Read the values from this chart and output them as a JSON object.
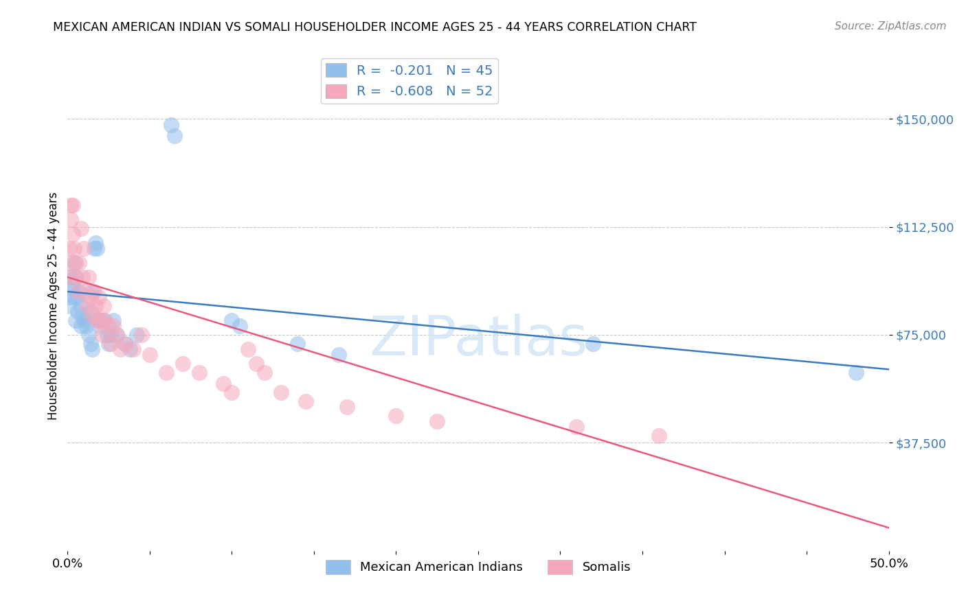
{
  "title": "MEXICAN AMERICAN INDIAN VS SOMALI HOUSEHOLDER INCOME AGES 25 - 44 YEARS CORRELATION CHART",
  "source": "Source: ZipAtlas.com",
  "ylabel": "Householder Income Ages 25 - 44 years",
  "xlim": [
    0.0,
    0.5
  ],
  "ylim": [
    0,
    170000
  ],
  "yticks": [
    37500,
    75000,
    112500,
    150000
  ],
  "ytick_labels": [
    "$37,500",
    "$75,000",
    "$112,500",
    "$150,000"
  ],
  "xtick_positions": [
    0.0,
    0.05,
    0.1,
    0.15,
    0.2,
    0.25,
    0.3,
    0.35,
    0.4,
    0.45,
    0.5
  ],
  "xtick_labels": [
    "0.0%",
    "",
    "",
    "",
    "",
    "",
    "",
    "",
    "",
    "",
    "50.0%"
  ],
  "blue_color": "#92c0ec",
  "pink_color": "#f5a8bc",
  "blue_line_color": "#3a7abf",
  "pink_line_color": "#e8587a",
  "grid_color": "#c8c8c8",
  "watermark_text": "ZIPatlas",
  "watermark_color": "#d0e4f5",
  "legend_R_blue": "-0.201",
  "legend_N_blue": "45",
  "legend_R_pink": "-0.608",
  "legend_N_pink": "52",
  "legend_label_blue": "Mexican American Indians",
  "legend_label_pink": "Somalis",
  "blue_line_y0": 90000,
  "blue_line_y1": 63000,
  "pink_line_y0": 95000,
  "pink_line_y1": 8000,
  "blue_scatter_x": [
    0.063,
    0.065,
    0.002,
    0.003,
    0.003,
    0.004,
    0.004,
    0.005,
    0.005,
    0.006,
    0.006,
    0.007,
    0.008,
    0.008,
    0.009,
    0.01,
    0.011,
    0.012,
    0.013,
    0.014,
    0.014,
    0.015,
    0.015,
    0.016,
    0.017,
    0.018,
    0.019,
    0.02,
    0.022,
    0.024,
    0.025,
    0.026,
    0.028,
    0.03,
    0.035,
    0.038,
    0.042,
    0.1,
    0.105,
    0.14,
    0.32,
    0.48,
    0.001,
    0.001,
    0.165
  ],
  "blue_scatter_y": [
    148000,
    144000,
    95000,
    93000,
    91000,
    100000,
    88000,
    95000,
    80000,
    88000,
    83000,
    90000,
    85000,
    78000,
    82000,
    80000,
    78000,
    80000,
    75000,
    83000,
    72000,
    70000,
    90000,
    105000,
    107000,
    105000,
    80000,
    78000,
    80000,
    75000,
    72000,
    75000,
    80000,
    75000,
    72000,
    70000,
    75000,
    80000,
    78000,
    72000,
    72000,
    62000,
    88000,
    85000,
    68000
  ],
  "pink_scatter_x": [
    0.001,
    0.001,
    0.002,
    0.002,
    0.003,
    0.003,
    0.004,
    0.005,
    0.005,
    0.006,
    0.007,
    0.008,
    0.009,
    0.01,
    0.011,
    0.012,
    0.013,
    0.014,
    0.015,
    0.016,
    0.017,
    0.018,
    0.019,
    0.02,
    0.021,
    0.022,
    0.023,
    0.025,
    0.026,
    0.028,
    0.03,
    0.032,
    0.035,
    0.04,
    0.045,
    0.05,
    0.06,
    0.07,
    0.08,
    0.095,
    0.1,
    0.11,
    0.115,
    0.12,
    0.13,
    0.145,
    0.17,
    0.2,
    0.225,
    0.31,
    0.36,
    0.001
  ],
  "pink_scatter_y": [
    95000,
    100000,
    115000,
    120000,
    120000,
    110000,
    105000,
    100000,
    95000,
    90000,
    100000,
    112000,
    95000,
    105000,
    90000,
    85000,
    95000,
    88000,
    82000,
    90000,
    85000,
    80000,
    88000,
    80000,
    75000,
    85000,
    80000,
    78000,
    72000,
    78000,
    75000,
    70000,
    72000,
    70000,
    75000,
    68000,
    62000,
    65000,
    62000,
    58000,
    55000,
    70000,
    65000,
    62000,
    55000,
    52000,
    50000,
    47000,
    45000,
    43000,
    40000,
    105000
  ]
}
